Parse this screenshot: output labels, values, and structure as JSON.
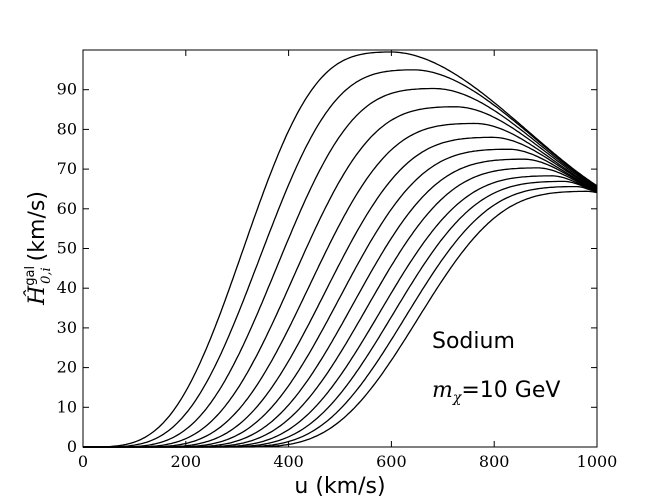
{
  "chart_data": {
    "type": "line",
    "title": "",
    "xlabel": "u (km/s)",
    "ylabel": {
      "prefix": "Ĥ",
      "superscript": "gal",
      "subscript": "0,i",
      "units": "(km/s)"
    },
    "xlim": [
      0,
      1000
    ],
    "ylim": [
      0,
      100
    ],
    "xticks": [
      0,
      200,
      400,
      600,
      800,
      1000
    ],
    "yticks": [
      0,
      10,
      20,
      30,
      40,
      50,
      60,
      70,
      80,
      90
    ],
    "grid": false,
    "legend": "none",
    "line_color": "#000000",
    "annotations": [
      {
        "text": "Sodium"
      },
      {
        "text_math": "m",
        "subscript": "χ",
        "text_after": "=10 GeV"
      }
    ],
    "series": [
      {
        "peak_x": 598,
        "peak_y": 99.5,
        "onset_x": 25,
        "end_y": 65.8
      },
      {
        "peak_x": 642,
        "peak_y": 95.0,
        "onset_x": 45,
        "end_y": 65.6
      },
      {
        "peak_x": 683,
        "peak_y": 90.3,
        "onset_x": 70,
        "end_y": 65.4
      },
      {
        "peak_x": 724,
        "peak_y": 85.7,
        "onset_x": 95,
        "end_y": 65.2
      },
      {
        "peak_x": 762,
        "peak_y": 81.5,
        "onset_x": 120,
        "end_y": 65.0
      },
      {
        "peak_x": 797,
        "peak_y": 78.0,
        "onset_x": 145,
        "end_y": 64.9
      },
      {
        "peak_x": 828,
        "peak_y": 75.0,
        "onset_x": 170,
        "end_y": 64.7
      },
      {
        "peak_x": 858,
        "peak_y": 72.5,
        "onset_x": 195,
        "end_y": 64.6
      },
      {
        "peak_x": 885,
        "peak_y": 70.3,
        "onset_x": 220,
        "end_y": 64.5
      },
      {
        "peak_x": 912,
        "peak_y": 68.3,
        "onset_x": 245,
        "end_y": 64.4
      },
      {
        "peak_x": 936,
        "peak_y": 66.9,
        "onset_x": 270,
        "end_y": 64.3
      },
      {
        "peak_x": 960,
        "peak_y": 65.6,
        "onset_x": 295,
        "end_y": 64.2
      },
      {
        "peak_x": 982,
        "peak_y": 64.4,
        "onset_x": 320,
        "end_y": 64.1
      }
    ]
  }
}
